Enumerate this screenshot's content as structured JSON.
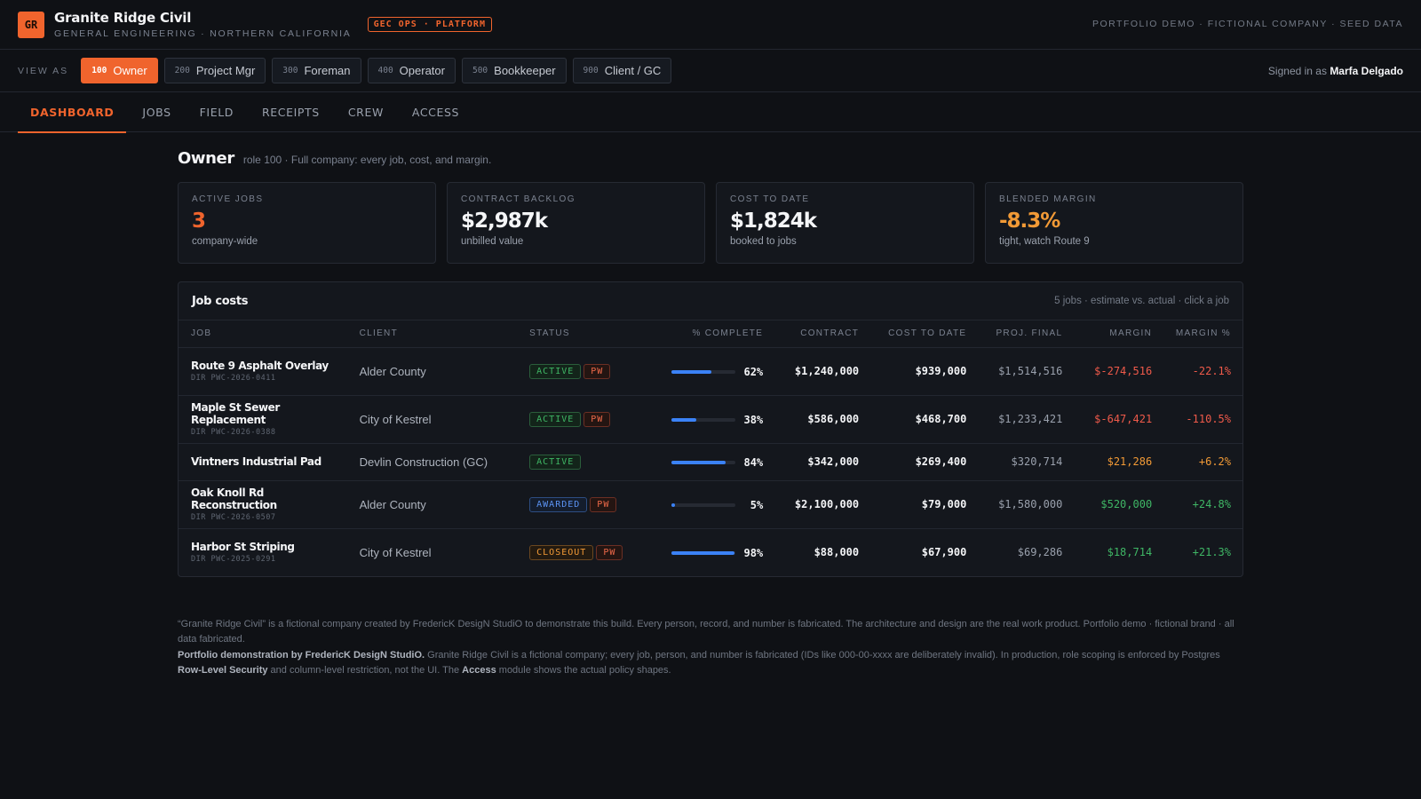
{
  "header": {
    "logo": "GR",
    "brand_name": "Granite Ridge Civil",
    "brand_sub": "General Engineering · Northern California",
    "ops_badge": "GEC OPS · PLATFORM",
    "top_right": "Portfolio demo · Fictional company · Seed data"
  },
  "rolebar": {
    "view_as": "VIEW AS",
    "roles": [
      {
        "code": "100",
        "label": "Owner",
        "active": true
      },
      {
        "code": "200",
        "label": "Project Mgr",
        "active": false
      },
      {
        "code": "300",
        "label": "Foreman",
        "active": false
      },
      {
        "code": "400",
        "label": "Operator",
        "active": false
      },
      {
        "code": "500",
        "label": "Bookkeeper",
        "active": false
      },
      {
        "code": "900",
        "label": "Client / GC",
        "active": false
      }
    ],
    "signed_prefix": "Signed in as",
    "signed_user": "Marfa Delgado"
  },
  "tabs": [
    "DASHBOARD",
    "JOBS",
    "FIELD",
    "RECEIPTS",
    "CREW",
    "ACCESS"
  ],
  "page": {
    "title": "Owner",
    "description": "role 100 · Full company: every job, cost, and margin."
  },
  "kpis": [
    {
      "label": "Active jobs",
      "value": "3",
      "sub": "company-wide",
      "tone": "orange"
    },
    {
      "label": "Contract backlog",
      "value": "$2,987k",
      "sub": "unbilled value",
      "tone": "default"
    },
    {
      "label": "Cost to date",
      "value": "$1,824k",
      "sub": "booked to jobs",
      "tone": "default"
    },
    {
      "label": "Blended margin",
      "value": "-8.3%",
      "sub": "tight, watch Route 9",
      "tone": "amber"
    }
  ],
  "job_costs": {
    "title": "Job costs",
    "meta": "5 jobs · estimate vs. actual · click a job",
    "columns": [
      "Job",
      "Client",
      "Status",
      "% Complete",
      "Contract",
      "Cost to date",
      "Proj. final",
      "Margin",
      "Margin %"
    ],
    "rows": [
      {
        "name": "Route 9 Asphalt Overlay",
        "id": "DIR PWC-2026-0411",
        "client": "Alder County",
        "status": "ACTIVE",
        "pw": true,
        "pct": 62,
        "pct_label": "62%",
        "contract": "$1,240,000",
        "cost": "$939,000",
        "proj": "$1,514,516",
        "margin": "$-274,516",
        "margin_pct": "-22.1%",
        "tone": "neg"
      },
      {
        "name": "Maple St Sewer Replacement",
        "id": "DIR PWC-2026-0388",
        "client": "City of Kestrel",
        "status": "ACTIVE",
        "pw": true,
        "pct": 38,
        "pct_label": "38%",
        "contract": "$586,000",
        "cost": "$468,700",
        "proj": "$1,233,421",
        "margin": "$-647,421",
        "margin_pct": "-110.5%",
        "tone": "neg"
      },
      {
        "name": "Vintners Industrial Pad",
        "id": "",
        "client": "Devlin Construction (GC)",
        "status": "ACTIVE",
        "pw": false,
        "pct": 84,
        "pct_label": "84%",
        "contract": "$342,000",
        "cost": "$269,400",
        "proj": "$320,714",
        "margin": "$21,286",
        "margin_pct": "+6.2%",
        "tone": "warn"
      },
      {
        "name": "Oak Knoll Rd Reconstruction",
        "id": "DIR PWC-2026-0507",
        "client": "Alder County",
        "status": "AWARDED",
        "pw": true,
        "pct": 5,
        "pct_label": "5%",
        "contract": "$2,100,000",
        "cost": "$79,000",
        "proj": "$1,580,000",
        "margin": "$520,000",
        "margin_pct": "+24.8%",
        "tone": "pos"
      },
      {
        "name": "Harbor St Striping",
        "id": "DIR PWC-2025-0291",
        "client": "City of Kestrel",
        "status": "CLOSEOUT",
        "pw": true,
        "pct": 98,
        "pct_label": "98%",
        "contract": "$88,000",
        "cost": "$67,900",
        "proj": "$69,286",
        "margin": "$18,714",
        "margin_pct": "+21.3%",
        "tone": "pos"
      }
    ]
  },
  "footer": {
    "line1": "“Granite Ridge Civil” is a fictional company created by FredericK DesigN StudiO to demonstrate this build. Every person, record, and number is fabricated. The architecture and design are the real work product. Portfolio demo · fictional brand · all data fabricated.",
    "line2_bold": "Portfolio demonstration by FredericK DesigN StudiO.",
    "line2_text": " Granite Ridge Civil is a fictional company; every job, person, and number is fabricated (IDs like 000-00-xxxx are deliberately invalid). In production, role scoping is enforced by Postgres ",
    "line2_bold2": "Row-Level Security",
    "line2_text2": " and column-level restriction, not the UI. The ",
    "line2_bold3": "Access",
    "line2_text3": " module shows the actual policy shapes."
  },
  "colors": {
    "accent": "#f0642d",
    "background": "#0f1115",
    "negative": "#ef5a4a",
    "warning": "#f29a36",
    "positive": "#3fb665",
    "progress": "#3b82f6"
  }
}
